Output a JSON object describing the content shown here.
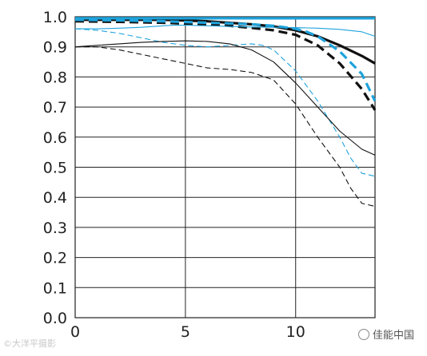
{
  "chart_data": {
    "type": "line",
    "title": "",
    "xlabel": "",
    "ylabel": "",
    "xlim": [
      0,
      13.6
    ],
    "ylim": [
      0,
      1.0
    ],
    "x_ticks": [
      0,
      5,
      10
    ],
    "x_tick_labels": [
      "0",
      "5",
      "10"
    ],
    "y_ticks": [
      0,
      0.1,
      0.2,
      0.3,
      0.4,
      0.5,
      0.6,
      0.7,
      0.8,
      0.9,
      1.0
    ],
    "y_tick_labels": [
      "0.0",
      "0.1",
      "0.2",
      "0.3",
      "0.4",
      "0.5",
      "0.6",
      "0.7",
      "0.8",
      "0.9",
      "1.0"
    ],
    "grid": true,
    "legend": "none",
    "series": [
      {
        "color": "#111111",
        "style": "solid",
        "weight": "thick",
        "x": [
          0,
          2,
          4,
          6,
          7,
          8,
          9,
          10,
          11,
          12,
          13,
          13.6
        ],
        "y": [
          0.99,
          0.99,
          0.99,
          0.985,
          0.98,
          0.975,
          0.968,
          0.955,
          0.935,
          0.905,
          0.87,
          0.845
        ]
      },
      {
        "color": "#111111",
        "style": "dashed",
        "weight": "thick",
        "x": [
          0,
          2,
          4,
          6,
          7,
          8,
          9,
          10,
          11,
          12,
          13,
          13.6
        ],
        "y": [
          0.985,
          0.983,
          0.98,
          0.975,
          0.97,
          0.963,
          0.955,
          0.94,
          0.905,
          0.845,
          0.76,
          0.69
        ]
      },
      {
        "color": "#1ea3dc",
        "style": "solid",
        "weight": "thick",
        "x": [
          0,
          13.6
        ],
        "y": [
          0.995,
          0.995
        ]
      },
      {
        "color": "#1ea3dc",
        "style": "dashed",
        "weight": "thick",
        "x": [
          0,
          2,
          4,
          6,
          7,
          8,
          9,
          10,
          10.5,
          11,
          12,
          13,
          13.6
        ],
        "y": [
          0.99,
          0.988,
          0.985,
          0.98,
          0.978,
          0.975,
          0.97,
          0.96,
          0.95,
          0.935,
          0.885,
          0.81,
          0.72
        ]
      },
      {
        "color": "#1ea3dc",
        "style": "solid",
        "weight": "thin",
        "x": [
          0,
          1,
          2,
          3,
          4,
          4.5,
          5,
          6,
          7,
          8,
          9,
          10,
          11,
          12,
          13,
          13.6
        ],
        "y": [
          0.96,
          0.96,
          0.962,
          0.965,
          0.97,
          0.972,
          0.972,
          0.97,
          0.968,
          0.966,
          0.965,
          0.964,
          0.962,
          0.958,
          0.95,
          0.935
        ]
      },
      {
        "color": "#1ea3dc",
        "style": "dashed",
        "weight": "thin",
        "x": [
          0,
          1,
          2,
          3,
          4,
          5,
          6,
          7,
          8,
          8.5,
          9,
          10,
          11,
          12,
          12.5,
          13,
          13.6
        ],
        "y": [
          0.96,
          0.955,
          0.945,
          0.93,
          0.915,
          0.905,
          0.9,
          0.905,
          0.91,
          0.905,
          0.89,
          0.82,
          0.72,
          0.6,
          0.53,
          0.48,
          0.47
        ]
      },
      {
        "color": "#111111",
        "style": "solid",
        "weight": "thin",
        "x": [
          0,
          1,
          2,
          3,
          4,
          5,
          6,
          7,
          8,
          9,
          10,
          11,
          12,
          13,
          13.6
        ],
        "y": [
          0.9,
          0.905,
          0.91,
          0.915,
          0.918,
          0.92,
          0.918,
          0.91,
          0.89,
          0.85,
          0.78,
          0.7,
          0.62,
          0.56,
          0.54
        ]
      },
      {
        "color": "#111111",
        "style": "dashed",
        "weight": "thin",
        "x": [
          0,
          1,
          2,
          3,
          4,
          5,
          6,
          7,
          8,
          9,
          10,
          11,
          12,
          12.5,
          13,
          13.6
        ],
        "y": [
          0.9,
          0.9,
          0.89,
          0.875,
          0.86,
          0.845,
          0.83,
          0.825,
          0.815,
          0.79,
          0.71,
          0.6,
          0.5,
          0.43,
          0.38,
          0.37
        ]
      }
    ]
  },
  "watermark": {
    "left_text": "©大洋平摄影",
    "right_text": "佳能中国"
  }
}
